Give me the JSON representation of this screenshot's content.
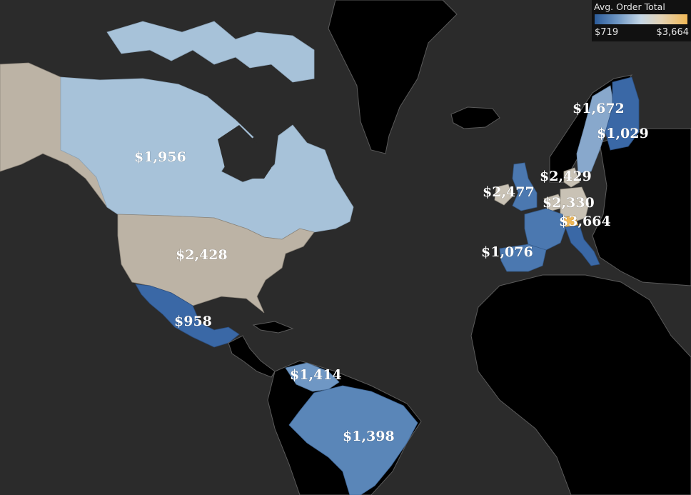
{
  "legend": {
    "title": "Avg. Order Total",
    "min_label": "$719",
    "max_label": "$3,664",
    "min_value": 719,
    "max_value": 3664
  },
  "colors": {
    "ocean": "#2b2b2b",
    "land_no_data": "#000000",
    "country_border": "#5a5a5a",
    "label": "#ffffff",
    "scale": [
      "#2c5c9a",
      "#6f97c4",
      "#c5d7e6",
      "#e4d3b4",
      "#f0b856"
    ],
    "alaska": "#bcb3a5"
  },
  "countries": [
    {
      "name": "Canada",
      "value": 1956,
      "label": "$1,956",
      "color": "#a7c2d9"
    },
    {
      "name": "United States",
      "value": 2428,
      "label": "$2,428",
      "color": "#bcb3a5"
    },
    {
      "name": "Mexico",
      "value": 958,
      "label": "$958",
      "color": "#3a68a6"
    },
    {
      "name": "Venezuela",
      "value": 1414,
      "label": "$1,414",
      "color": "#6f97c4"
    },
    {
      "name": "Brazil",
      "value": 1398,
      "label": "$1,398",
      "color": "#5a86b8"
    },
    {
      "name": "Sweden",
      "value": 1672,
      "label": "$1,672",
      "color": "#88a8cc"
    },
    {
      "name": "Finland",
      "value": 1029,
      "label": "$1,029",
      "color": "#3a68a6"
    },
    {
      "name": "Denmark",
      "value": 2429,
      "label": "$2,429",
      "color": "#c9c2b5"
    },
    {
      "name": "United Kingdom",
      "value": 2477,
      "label": "$2,477",
      "color": "#4b78b0"
    },
    {
      "name": "Ireland",
      "value": 2477,
      "label": "$2,477",
      "color": "#c9c2b5"
    },
    {
      "name": "Germany",
      "value": 2330,
      "label": "$2,330",
      "color": "#c9c2b5"
    },
    {
      "name": "Switzerland",
      "value": 3664,
      "label": "$3,664",
      "color": "#f0b856"
    },
    {
      "name": "France",
      "value": 1076,
      "label": "$1,076",
      "color": "#4b78b0"
    },
    {
      "name": "Spain",
      "value": 1076,
      "label": "$1,076",
      "color": "#4b78b0"
    },
    {
      "name": "Italy",
      "value": 1076,
      "label": "$1,076",
      "color": "#3a68a6"
    }
  ]
}
